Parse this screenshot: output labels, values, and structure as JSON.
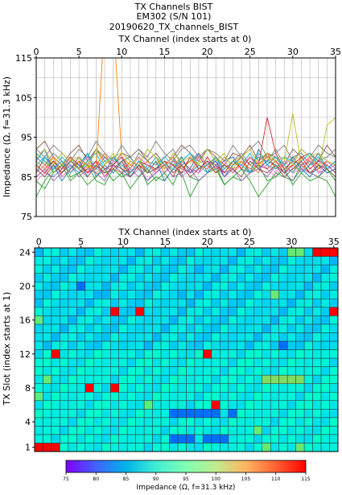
{
  "title_lines": [
    "TX Channels BIST",
    "EM302 (S/N 101)",
    "20190620_TX_channels_BIST"
  ],
  "chart_data": [
    {
      "type": "line",
      "xlabel": "TX Channel (index starts at 0)",
      "ylabel": "Impedance (Ω, f=31.3 kHz)",
      "xlim": [
        0,
        35
      ],
      "ylim": [
        75,
        115
      ],
      "xticks": [
        0,
        5,
        10,
        15,
        20,
        25,
        30,
        35
      ],
      "yticks": [
        75,
        85,
        95,
        105,
        115
      ],
      "grid": true,
      "x": [
        0,
        1,
        2,
        3,
        4,
        5,
        6,
        7,
        8,
        9,
        10,
        11,
        12,
        13,
        14,
        15,
        16,
        17,
        18,
        19,
        20,
        21,
        22,
        23,
        24,
        25,
        26,
        27,
        28,
        29,
        30,
        31,
        32,
        33,
        34,
        35
      ],
      "series": [
        {
          "color": "#1f77b4",
          "values": [
            89,
            92,
            86,
            88,
            90,
            87,
            91,
            85,
            88,
            86,
            89,
            90,
            87,
            84,
            86,
            88,
            90,
            85,
            87,
            91,
            86,
            88,
            89,
            90,
            87,
            86,
            92,
            88,
            90,
            87,
            89,
            86,
            88,
            91,
            87,
            89
          ]
        },
        {
          "color": "#ff7f0e",
          "values": [
            86,
            88,
            90,
            85,
            87,
            89,
            86,
            88,
            91,
            87,
            86,
            89,
            88,
            87,
            90,
            86,
            88,
            87,
            89,
            90,
            88,
            86,
            87,
            89,
            90,
            88,
            86,
            91,
            87,
            88,
            86,
            90,
            89,
            87,
            88,
            86
          ]
        },
        {
          "color": "#2ca02c",
          "values": [
            80,
            84,
            87,
            89,
            85,
            86,
            88,
            84,
            83,
            87,
            85,
            86,
            88,
            83,
            85,
            84,
            87,
            86,
            80,
            84,
            86,
            88,
            83,
            85,
            87,
            84,
            80,
            83,
            86,
            85,
            84,
            88,
            86,
            85,
            84,
            80
          ]
        },
        {
          "color": "#d62728",
          "values": [
            85,
            87,
            89,
            86,
            88,
            86,
            87,
            89,
            85,
            88,
            87,
            86,
            89,
            86,
            87,
            88,
            85,
            89,
            87,
            86,
            90,
            87,
            88,
            86,
            89,
            87,
            88,
            100,
            91,
            87,
            89,
            88,
            86,
            87,
            89,
            88
          ]
        },
        {
          "color": "#9467bd",
          "values": [
            88,
            86,
            85,
            87,
            89,
            88,
            86,
            87,
            90,
            88,
            86,
            87,
            85,
            88,
            87,
            86,
            89,
            88,
            86,
            87,
            88,
            89,
            86,
            87,
            88,
            86,
            87,
            89,
            88,
            86,
            87,
            88,
            89,
            86,
            87,
            88
          ]
        },
        {
          "color": "#8c564b",
          "values": [
            92,
            94,
            90,
            88,
            91,
            93,
            89,
            92,
            90,
            88,
            91,
            90,
            92,
            89,
            91,
            88,
            90,
            93,
            91,
            89,
            92,
            90,
            88,
            91,
            90,
            93,
            89,
            91,
            90,
            88,
            92,
            90,
            91,
            89,
            93,
            90
          ]
        },
        {
          "color": "#e377c2",
          "values": [
            84,
            86,
            88,
            85,
            87,
            90,
            86,
            88,
            85,
            87,
            89,
            86,
            88,
            84,
            87,
            86,
            88,
            85,
            87,
            86,
            88,
            90,
            85,
            87,
            88,
            86,
            89,
            87,
            85,
            88,
            86,
            87,
            89,
            88,
            86,
            87
          ]
        },
        {
          "color": "#7f7f7f",
          "values": [
            90,
            88,
            91,
            89,
            87,
            90,
            88,
            92,
            89,
            88,
            90,
            87,
            91,
            89,
            88,
            90,
            92,
            88,
            89,
            91,
            88,
            90,
            87,
            89,
            91,
            88,
            90,
            89,
            92,
            88,
            90,
            91,
            88,
            89,
            90,
            92
          ]
        },
        {
          "color": "#bcbd22",
          "values": [
            87,
            89,
            86,
            88,
            90,
            87,
            89,
            86,
            88,
            91,
            87,
            88,
            90,
            86,
            89,
            87,
            88,
            90,
            86,
            89,
            88,
            87,
            90,
            88,
            89,
            86,
            88,
            90,
            87,
            89,
            101,
            88,
            90,
            87,
            98,
            100
          ]
        },
        {
          "color": "#17becf",
          "values": [
            91,
            89,
            87,
            90,
            88,
            86,
            89,
            91,
            87,
            88,
            90,
            86,
            89,
            88,
            87,
            90,
            88,
            89,
            91,
            87,
            88,
            90,
            86,
            89,
            88,
            91,
            87,
            89,
            90,
            88,
            86,
            89,
            91,
            88,
            87,
            89
          ]
        },
        {
          "color": "#1f77b4",
          "values": [
            86,
            90,
            88,
            84,
            87,
            89,
            85,
            88,
            86,
            90,
            87,
            85,
            88,
            86,
            89,
            84,
            87,
            90,
            86,
            88,
            87,
            89,
            85,
            88,
            90,
            86,
            87,
            89,
            88,
            86,
            90,
            87,
            85,
            88,
            86,
            87
          ]
        },
        {
          "color": "#ff7f0e",
          "values": [
            89,
            87,
            90,
            88,
            86,
            89,
            88,
            87,
            125,
            125,
            90,
            88,
            87,
            89,
            86,
            88,
            90,
            87,
            89,
            88,
            87,
            90,
            88,
            86,
            89,
            87,
            88,
            90,
            89,
            87,
            88,
            86,
            90,
            88,
            89,
            87
          ]
        },
        {
          "color": "#2ca02c",
          "values": [
            84,
            82,
            86,
            88,
            84,
            86,
            83,
            85,
            87,
            84,
            86,
            82,
            85,
            87,
            84,
            86,
            83,
            88,
            85,
            84,
            86,
            87,
            83,
            85,
            84,
            86,
            88,
            84,
            85,
            87,
            83,
            86,
            84,
            85,
            87,
            84
          ]
        },
        {
          "color": "#d62728",
          "values": [
            88,
            86,
            89,
            87,
            90,
            88,
            86,
            89,
            87,
            88,
            90,
            86,
            89,
            88,
            87,
            89,
            88,
            86,
            90,
            87,
            89,
            88,
            86,
            89,
            87,
            90,
            88,
            87,
            89,
            86,
            88,
            90,
            87,
            89,
            88,
            86
          ]
        },
        {
          "color": "#e377c2",
          "values": [
            86,
            88,
            87,
            89,
            86,
            88,
            90,
            87,
            86,
            89,
            88,
            87,
            90,
            88,
            86,
            88,
            89,
            87,
            86,
            90,
            88,
            87,
            89,
            86,
            88,
            90,
            87,
            88,
            86,
            89,
            87,
            88,
            90,
            86,
            89,
            87
          ]
        },
        {
          "color": "#7f7f7f",
          "values": [
            92,
            90,
            93,
            91,
            89,
            92,
            90,
            94,
            91,
            89,
            93,
            90,
            92,
            90,
            94,
            91,
            89,
            92,
            93,
            90,
            92,
            91,
            89,
            93,
            90,
            92,
            94,
            90,
            91,
            93,
            89,
            92,
            90,
            93,
            91,
            90
          ]
        },
        {
          "color": "#9467bd",
          "values": [
            85,
            87,
            84,
            86,
            88,
            85,
            87,
            86,
            84,
            88,
            86,
            85,
            87,
            84,
            86,
            88,
            85,
            86,
            87,
            84,
            86,
            88,
            85,
            87,
            84,
            86,
            87,
            85,
            88,
            86,
            84,
            87,
            86,
            85,
            88,
            86
          ]
        },
        {
          "color": "#17becf",
          "values": [
            88,
            90,
            87,
            89,
            86,
            88,
            91,
            87,
            89,
            90,
            88,
            86,
            89,
            87,
            90,
            88,
            87,
            89,
            91,
            88,
            86,
            90,
            87,
            89,
            88,
            86,
            91,
            88,
            87,
            90,
            89,
            86,
            88,
            90,
            87,
            89
          ]
        },
        {
          "color": "#bcbd22",
          "values": [
            90,
            92,
            88,
            91,
            89,
            90,
            87,
            92,
            88,
            90,
            91,
            89,
            88,
            92,
            90,
            87,
            91,
            89,
            90,
            88,
            92,
            89,
            91,
            87,
            90,
            92,
            88,
            91,
            89,
            90,
            88,
            92,
            90,
            91,
            89,
            88
          ]
        },
        {
          "color": "#8c564b",
          "values": [
            87,
            85,
            88,
            86,
            89,
            87,
            85,
            88,
            86,
            87,
            89,
            85,
            88,
            86,
            87,
            89,
            86,
            88,
            85,
            87,
            89,
            86,
            88,
            87,
            85,
            89,
            87,
            86,
            88,
            85,
            87,
            89,
            86,
            88,
            87,
            85
          ]
        }
      ]
    },
    {
      "type": "heatmap",
      "xlabel": "TX Channel (index starts at 0)",
      "ylabel": "TX Slot (index starts at 1)",
      "columns": 36,
      "rows": 24,
      "xticks": [
        0,
        5,
        10,
        15,
        20,
        25,
        30,
        35
      ],
      "yticks": [
        1,
        4,
        8,
        12,
        16,
        20,
        24
      ],
      "colorbar_label": "Impedance (Ω, f=31.3 kHz)",
      "colorbar_ticks": [
        75,
        80,
        85,
        90,
        95,
        100,
        105,
        110,
        115
      ],
      "vmin": 75,
      "vmax": 115,
      "base_pattern": [
        [
          84,
          90,
          88
        ],
        [
          86,
          92,
          89
        ],
        [
          85,
          88,
          91
        ],
        [
          87,
          90,
          86
        ]
      ],
      "hot_cells": [
        {
          "col": 0,
          "row": 1,
          "value": 115
        },
        {
          "col": 1,
          "row": 1,
          "value": 115
        },
        {
          "col": 2,
          "row": 1,
          "value": 115
        },
        {
          "col": 33,
          "row": 24,
          "value": 115
        },
        {
          "col": 34,
          "row": 24,
          "value": 115
        },
        {
          "col": 35,
          "row": 24,
          "value": 115
        },
        {
          "col": 9,
          "row": 17,
          "value": 115
        },
        {
          "col": 12,
          "row": 17,
          "value": 115
        },
        {
          "col": 35,
          "row": 17,
          "value": 115
        },
        {
          "col": 2,
          "row": 12,
          "value": 115
        },
        {
          "col": 20,
          "row": 12,
          "value": 115
        },
        {
          "col": 6,
          "row": 8,
          "value": 115
        },
        {
          "col": 9,
          "row": 8,
          "value": 115
        },
        {
          "col": 21,
          "row": 6,
          "value": 115
        },
        {
          "col": 16,
          "row": 5,
          "value": 77
        },
        {
          "col": 17,
          "row": 5,
          "value": 77
        },
        {
          "col": 18,
          "row": 5,
          "value": 77
        },
        {
          "col": 19,
          "row": 5,
          "value": 77
        },
        {
          "col": 20,
          "row": 5,
          "value": 77
        },
        {
          "col": 21,
          "row": 5,
          "value": 77
        },
        {
          "col": 23,
          "row": 5,
          "value": 77
        },
        {
          "col": 16,
          "row": 2,
          "value": 77
        },
        {
          "col": 17,
          "row": 2,
          "value": 77
        },
        {
          "col": 18,
          "row": 2,
          "value": 77
        },
        {
          "col": 20,
          "row": 2,
          "value": 77
        },
        {
          "col": 21,
          "row": 2,
          "value": 77
        },
        {
          "col": 22,
          "row": 2,
          "value": 77
        },
        {
          "col": 5,
          "row": 20,
          "value": 77
        },
        {
          "col": 29,
          "row": 13,
          "value": 77
        },
        {
          "col": 27,
          "row": 9,
          "value": 105
        },
        {
          "col": 28,
          "row": 9,
          "value": 105
        },
        {
          "col": 29,
          "row": 9,
          "value": 105
        },
        {
          "col": 30,
          "row": 9,
          "value": 105
        },
        {
          "col": 31,
          "row": 9,
          "value": 105
        },
        {
          "col": 30,
          "row": 24,
          "value": 103
        },
        {
          "col": 31,
          "row": 24,
          "value": 103
        },
        {
          "col": 28,
          "row": 19,
          "value": 103
        },
        {
          "col": 0,
          "row": 16,
          "value": 102
        },
        {
          "col": 0,
          "row": 7,
          "value": 102
        },
        {
          "col": 13,
          "row": 6,
          "value": 102
        },
        {
          "col": 1,
          "row": 9,
          "value": 103
        },
        {
          "col": 26,
          "row": 3,
          "value": 103
        },
        {
          "col": 27,
          "row": 1,
          "value": 103
        },
        {
          "col": 31,
          "row": 1,
          "value": 103
        },
        {
          "col": 17,
          "row": 19,
          "value": 81
        },
        {
          "col": 8,
          "row": 19,
          "value": 81
        },
        {
          "col": 19,
          "row": 22,
          "value": 81
        }
      ]
    }
  ]
}
